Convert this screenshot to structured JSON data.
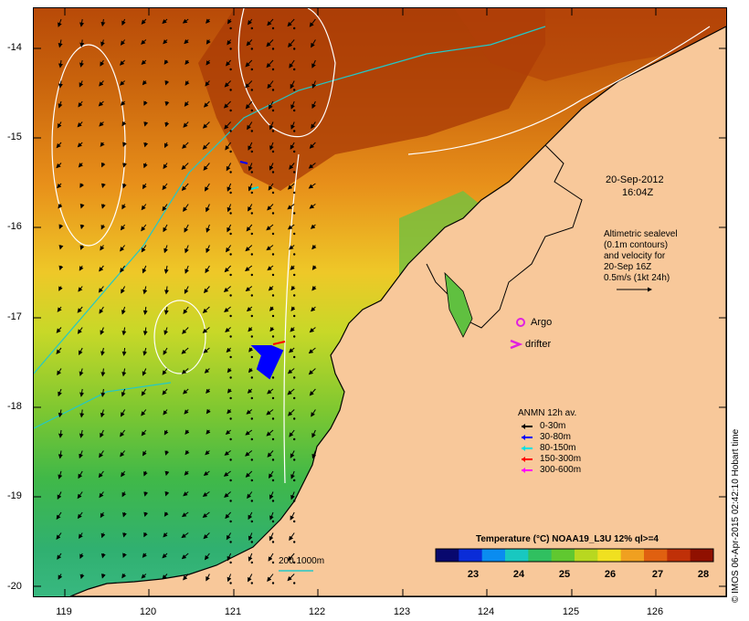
{
  "map": {
    "y_axis_labels": [
      "-14",
      "-15",
      "-16",
      "-17",
      "-18",
      "-19",
      "-20"
    ],
    "x_axis_labels": [
      "119",
      "120",
      "121",
      "122",
      "123",
      "124",
      "125",
      "126"
    ],
    "colors": {
      "land": "#f8c89a",
      "contour": "#ffffff",
      "isobath": "#22c8c8",
      "arrow": "#000000"
    }
  },
  "annotation": {
    "date": "20-Sep-2012",
    "time": "16:04Z"
  },
  "altimetry_note": {
    "lines": [
      "Altimetric sealevel",
      "(0.1m contours)",
      "and velocity for",
      "20-Sep 16Z",
      "0.5m/s (1kt 24h)"
    ]
  },
  "markers": {
    "argo_label": "Argo",
    "argo_color": "#e020e0",
    "drifter_label": "drifter",
    "drifter_symbol": ">",
    "drifter_color": "#e020e0"
  },
  "anmn_legend": {
    "title": "ANMN 12h av.",
    "items": [
      {
        "label": "0-30m",
        "color": "#000000"
      },
      {
        "label": "30-80m",
        "color": "#0000ff"
      },
      {
        "label": "80-150m",
        "color": "#00e0e0"
      },
      {
        "label": "150-300m",
        "color": "#ff0000"
      },
      {
        "label": "300-600m",
        "color": "#ff00ff"
      }
    ]
  },
  "isobath_label": "200  1000m",
  "colorbar": {
    "title": "Temperature (°C) NOAA19_L3U 12% ql>=4",
    "ticks": [
      "23",
      "24",
      "25",
      "26",
      "27",
      "28"
    ],
    "colors": [
      "#08086e",
      "#0a2cd8",
      "#0a8cf0",
      "#18c8c0",
      "#30c060",
      "#60c830",
      "#b8d820",
      "#f0e020",
      "#f0a020",
      "#e06010",
      "#c03008",
      "#901000"
    ]
  },
  "credit": "© IMOS 06-Apr-2015 02:42:10 Hobart time"
}
